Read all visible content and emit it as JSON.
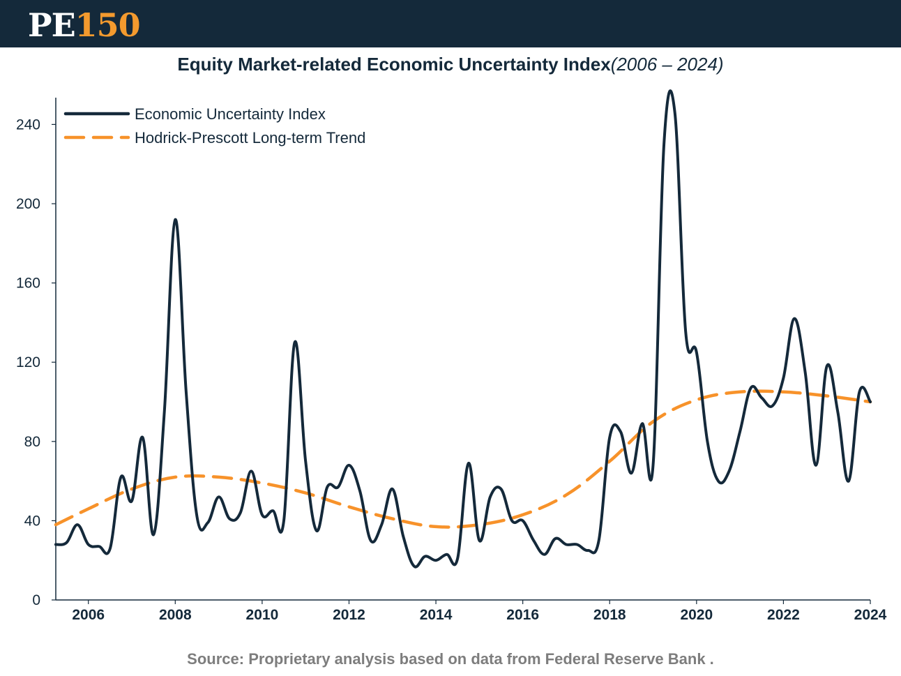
{
  "header": {
    "logo_pe": "PE",
    "logo_num": "150"
  },
  "title": {
    "main": "Equity Market-related Economic Uncertainty Index",
    "range": "(2006 – 2024)"
  },
  "source": "Source: Proprietary analysis based on data from Federal Reserve Bank  .",
  "colors": {
    "banner": "#14293a",
    "series_index": "#14293a",
    "series_trend": "#f7922a",
    "logo_accent": "#f39a2e",
    "source_text": "#7d7d7d"
  },
  "chart_data": {
    "type": "line",
    "title": "Equity Market-related Economic Uncertainty Index(2006 – 2024)",
    "xlabel": "",
    "ylabel": "",
    "xlim": [
      2005.25,
      2024.0
    ],
    "ylim": [
      0,
      250
    ],
    "x_ticks": [
      "2006",
      "2008",
      "2010",
      "2012",
      "2014",
      "2016",
      "2018",
      "2020",
      "2022",
      "2024"
    ],
    "y_ticks": [
      "0",
      "40",
      "80",
      "120",
      "160",
      "200",
      "240"
    ],
    "grid": false,
    "legend_position": "top-left",
    "series": [
      {
        "name": "Economic Uncertainty Index",
        "style": "solid",
        "x": [
          2005.25,
          2005.5,
          2005.75,
          2006.0,
          2006.25,
          2006.5,
          2006.75,
          2007.0,
          2007.25,
          2007.5,
          2007.75,
          2008.0,
          2008.25,
          2008.5,
          2008.75,
          2009.0,
          2009.25,
          2009.5,
          2009.75,
          2010.0,
          2010.25,
          2010.5,
          2010.75,
          2011.0,
          2011.25,
          2011.5,
          2011.75,
          2012.0,
          2012.25,
          2012.5,
          2012.75,
          2013.0,
          2013.25,
          2013.5,
          2013.75,
          2014.0,
          2014.25,
          2014.5,
          2014.75,
          2015.0,
          2015.25,
          2015.5,
          2015.75,
          2016.0,
          2016.25,
          2016.5,
          2016.75,
          2017.0,
          2017.25,
          2017.5,
          2017.75,
          2018.0,
          2018.25,
          2018.5,
          2018.75,
          2019.0,
          2019.25,
          2019.5,
          2019.75,
          2020.0,
          2020.25,
          2020.5,
          2020.75,
          2021.0,
          2021.25,
          2021.5,
          2021.75,
          2022.0,
          2022.25,
          2022.5,
          2022.75,
          2023.0,
          2023.25,
          2023.5,
          2023.75,
          2024.0
        ],
        "values": [
          28,
          29,
          38,
          28,
          27,
          26,
          62,
          50,
          82,
          33,
          95,
          192,
          105,
          42,
          39,
          52,
          41,
          44,
          65,
          43,
          45,
          40,
          130,
          70,
          35,
          57,
          57,
          68,
          55,
          30,
          38,
          56,
          32,
          17,
          22,
          20,
          23,
          21,
          69,
          30,
          52,
          56,
          40,
          40,
          30,
          23,
          31,
          28,
          28,
          25,
          30,
          82,
          85,
          64,
          89,
          68,
          230,
          246,
          135,
          125,
          80,
          60,
          65,
          85,
          107,
          102,
          98,
          112,
          142,
          115,
          68,
          118,
          95,
          60,
          105,
          100
        ]
      },
      {
        "name": "Hodrick-Prescott Long-term Trend",
        "style": "dashed",
        "x": [
          2005.25,
          2006.0,
          2007.0,
          2008.0,
          2009.0,
          2010.0,
          2011.0,
          2012.0,
          2013.0,
          2014.0,
          2015.0,
          2016.0,
          2017.0,
          2018.0,
          2019.0,
          2020.0,
          2021.0,
          2022.0,
          2023.0,
          2024.0
        ],
        "values": [
          38,
          46,
          56,
          62,
          62,
          59,
          54,
          47,
          41,
          37,
          38,
          43,
          53,
          70,
          90,
          101,
          105,
          105,
          103,
          100
        ]
      }
    ]
  }
}
